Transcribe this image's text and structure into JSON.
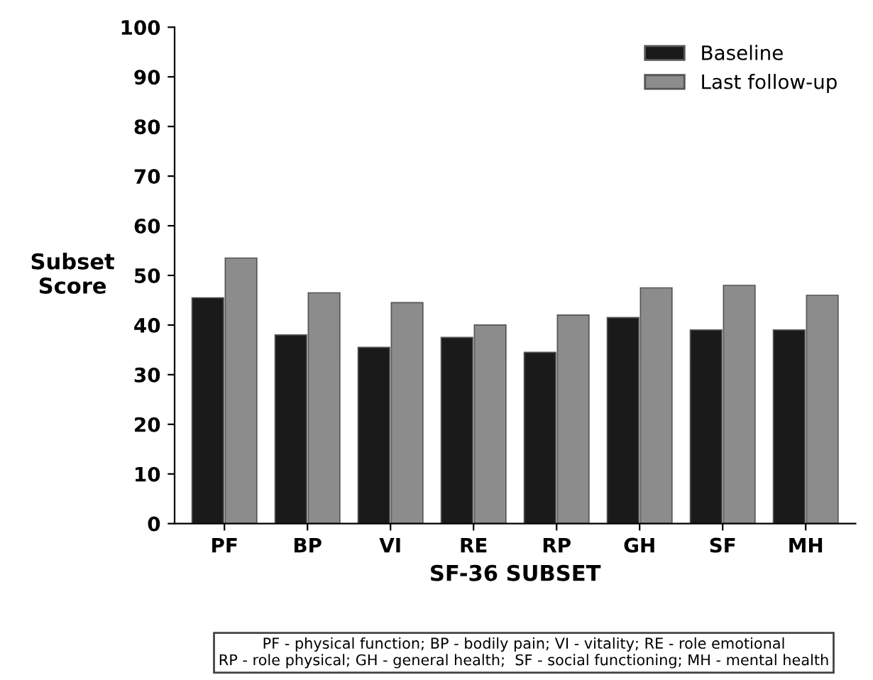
{
  "chart_data": {
    "type": "bar",
    "xlabel": "SF-36 SUBSET",
    "ylabel": "Subset\nScore",
    "categories": [
      "PF",
      "BP",
      "VI",
      "RE",
      "RP",
      "GH",
      "SF",
      "MH"
    ],
    "series": [
      {
        "name": "Baseline",
        "color": "#1a1a1a",
        "values": [
          45.5,
          38,
          35.5,
          37.5,
          34.5,
          41.5,
          39,
          39
        ]
      },
      {
        "name": "Last follow-up",
        "color": "#8c8c8c",
        "values": [
          53.5,
          46.5,
          44.5,
          40,
          42,
          47.5,
          48,
          46
        ]
      }
    ],
    "ylim": [
      0,
      100
    ],
    "yticks": [
      0,
      10,
      20,
      30,
      40,
      50,
      60,
      70,
      80,
      90,
      100
    ],
    "grid": false,
    "legend": "top right",
    "annotations": [
      "PF - physical function; BP - bodily pain; VI - vitality; RE - role emotional\nRP - role physical; GH - general health;  SF - social functioning; MH - mental health"
    ]
  }
}
